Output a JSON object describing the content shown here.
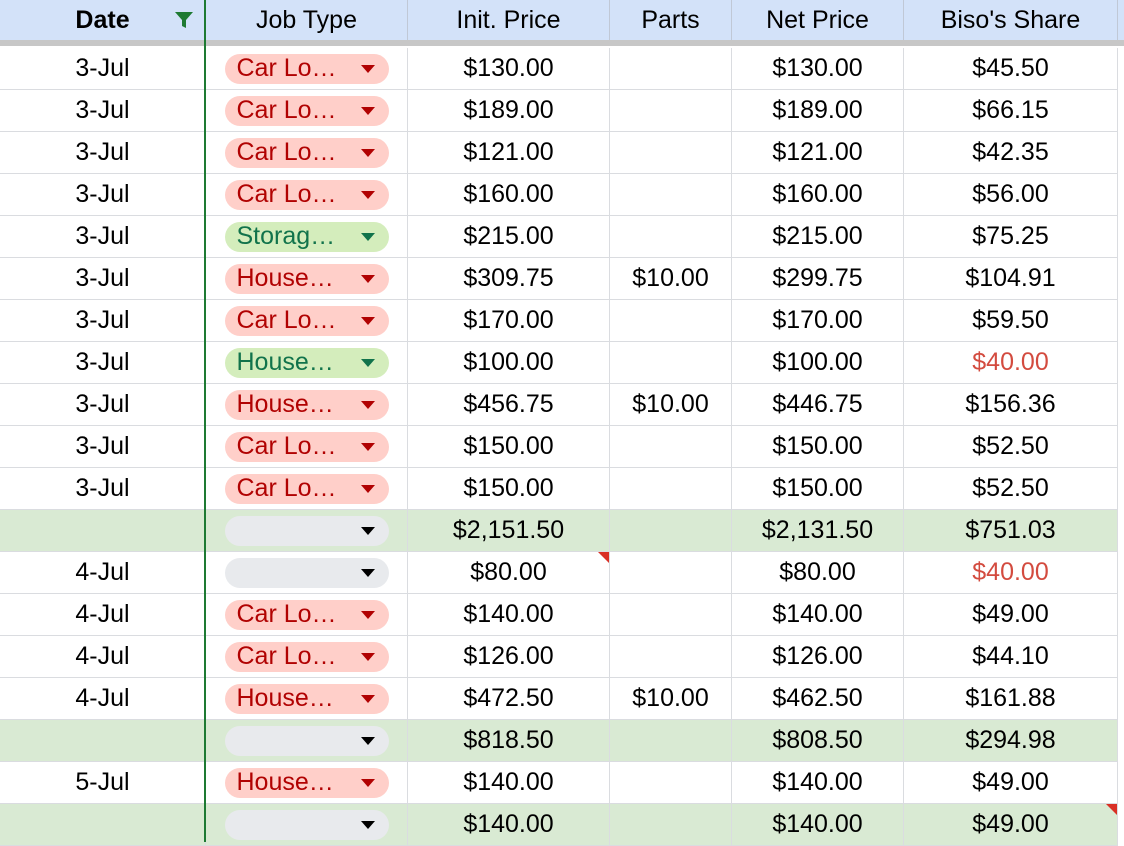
{
  "header": {
    "columns": [
      "Date",
      "Job Type",
      "Init. Price",
      "Parts",
      "Net Price",
      "Biso's Share"
    ]
  },
  "colors": {
    "header_bg": "#d3e2f9",
    "total_row_bg": "#d9ead3",
    "chip_red_bg": "#ffcfc9",
    "chip_red_text": "#b10202",
    "chip_green_bg": "#d4edbc",
    "chip_green_text": "#11734b",
    "chip_empty_bg": "#e8eaed",
    "warning_text": "#d34b3f",
    "freeze_line": "#1e7a33"
  },
  "icons": {
    "filter": "filter-icon",
    "dropdown": "chevron-down-icon",
    "note": "comment-marker"
  },
  "rows": [
    {
      "date": "3-Jul",
      "job": "Car Lo…",
      "chip": "red",
      "init": "$130.00",
      "parts": "",
      "net": "$130.00",
      "share": "$45.50"
    },
    {
      "date": "3-Jul",
      "job": "Car Lo…",
      "chip": "red",
      "init": "$189.00",
      "parts": "",
      "net": "$189.00",
      "share": "$66.15"
    },
    {
      "date": "3-Jul",
      "job": "Car Lo…",
      "chip": "red",
      "init": "$121.00",
      "parts": "",
      "net": "$121.00",
      "share": "$42.35"
    },
    {
      "date": "3-Jul",
      "job": "Car Lo…",
      "chip": "red",
      "init": "$160.00",
      "parts": "",
      "net": "$160.00",
      "share": "$56.00"
    },
    {
      "date": "3-Jul",
      "job": "Storag…",
      "chip": "green",
      "init": "$215.00",
      "parts": "",
      "net": "$215.00",
      "share": "$75.25"
    },
    {
      "date": "3-Jul",
      "job": "House…",
      "chip": "red",
      "init": "$309.75",
      "parts": "$10.00",
      "net": "$299.75",
      "share": "$104.91"
    },
    {
      "date": "3-Jul",
      "job": "Car Lo…",
      "chip": "red",
      "init": "$170.00",
      "parts": "",
      "net": "$170.00",
      "share": "$59.50"
    },
    {
      "date": "3-Jul",
      "job": "House…",
      "chip": "green",
      "init": "$100.00",
      "parts": "",
      "net": "$100.00",
      "share": "$40.00",
      "share_warn": true
    },
    {
      "date": "3-Jul",
      "job": "House…",
      "chip": "red",
      "init": "$456.75",
      "parts": "$10.00",
      "net": "$446.75",
      "share": "$156.36"
    },
    {
      "date": "3-Jul",
      "job": "Car Lo…",
      "chip": "red",
      "init": "$150.00",
      "parts": "",
      "net": "$150.00",
      "share": "$52.50"
    },
    {
      "date": "3-Jul",
      "job": "Car Lo…",
      "chip": "red",
      "init": "$150.00",
      "parts": "",
      "net": "$150.00",
      "share": "$52.50"
    },
    {
      "date": "",
      "job": "",
      "chip": "empty",
      "init": "$2,151.50",
      "parts": "",
      "net": "$2,131.50",
      "share": "$751.03",
      "total": true
    },
    {
      "date": "4-Jul",
      "job": "",
      "chip": "empty",
      "init": "$80.00",
      "parts": "",
      "net": "$80.00",
      "share": "$40.00",
      "share_warn": true,
      "init_note": true
    },
    {
      "date": "4-Jul",
      "job": "Car Lo…",
      "chip": "red",
      "init": "$140.00",
      "parts": "",
      "net": "$140.00",
      "share": "$49.00"
    },
    {
      "date": "4-Jul",
      "job": "Car Lo…",
      "chip": "red",
      "init": "$126.00",
      "parts": "",
      "net": "$126.00",
      "share": "$44.10"
    },
    {
      "date": "4-Jul",
      "job": "House…",
      "chip": "red",
      "init": "$472.50",
      "parts": "$10.00",
      "net": "$462.50",
      "share": "$161.88"
    },
    {
      "date": "",
      "job": "",
      "chip": "empty",
      "init": "$818.50",
      "parts": "",
      "net": "$808.50",
      "share": "$294.98",
      "total": true
    },
    {
      "date": "5-Jul",
      "job": "House…",
      "chip": "red",
      "init": "$140.00",
      "parts": "",
      "net": "$140.00",
      "share": "$49.00"
    },
    {
      "date": "",
      "job": "",
      "chip": "empty",
      "init": "$140.00",
      "parts": "",
      "net": "$140.00",
      "share": "$49.00",
      "total": true,
      "share_note": true
    }
  ]
}
